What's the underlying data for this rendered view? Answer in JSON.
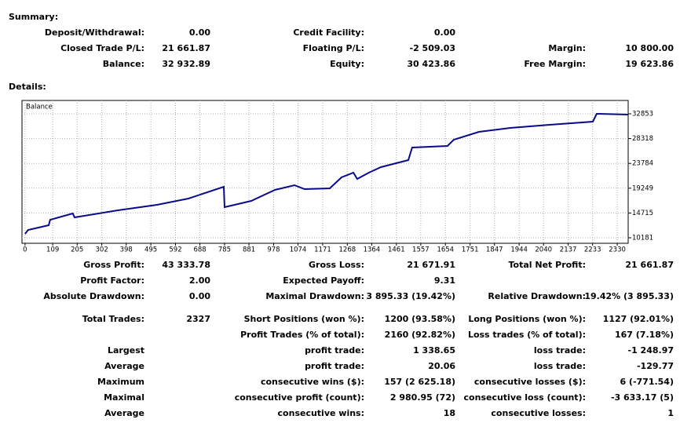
{
  "header": {
    "summary": "Summary:",
    "details": "Details:"
  },
  "summary": {
    "rows": [
      [
        "Deposit/Withdrawal:",
        "0.00",
        "Credit Facility:",
        "0.00",
        null,
        null
      ],
      [
        "Closed Trade P/L:",
        "21 661.87",
        "Floating P/L:",
        "-2 509.03",
        "Margin:",
        "10 800.00"
      ],
      [
        "Balance:",
        "32 932.89",
        "Equity:",
        "30 423.86",
        "Free Margin:",
        "19 623.86"
      ]
    ]
  },
  "chart_data": {
    "type": "line",
    "title": "Balance",
    "color": "#0b0b8a",
    "grid": true,
    "x": [
      0,
      12,
      93,
      99,
      188,
      195,
      365,
      519,
      643,
      782,
      785,
      890,
      983,
      1060,
      1100,
      1199,
      1245,
      1292,
      1307,
      1353,
      1400,
      1508,
      1523,
      1662,
      1687,
      1786,
      1909,
      2064,
      2234,
      2249,
      2373
    ],
    "values": [
      10898,
      11615,
      12477,
      13481,
      14629,
      13911,
      15203,
      16207,
      17355,
      19507,
      15777,
      16924,
      18933,
      19794,
      19076,
      19220,
      21228,
      22089,
      20942,
      22089,
      23093,
      24384,
      26680,
      26967,
      28115,
      29549,
      30267,
      30841,
      31415,
      32853,
      32709
    ],
    "xlim": [
      -12,
      2373
    ],
    "ylim": [
      9177,
      35293
    ],
    "xticks": [
      0,
      109,
      205,
      302,
      398,
      495,
      592,
      688,
      785,
      881,
      978,
      1074,
      1171,
      1268,
      1364,
      1461,
      1557,
      1654,
      1751,
      1847,
      1944,
      2040,
      2137,
      2233,
      2330
    ],
    "yticks": [
      10181,
      14715,
      19249,
      23784,
      28318,
      32853
    ]
  },
  "details": {
    "rows": [
      [
        "Gross Profit:",
        "43 333.78",
        "Gross Loss:",
        "21 671.91",
        "Total Net Profit:",
        "21 661.87"
      ],
      [
        "Profit Factor:",
        "2.00",
        "Expected Payoff:",
        "9.31",
        null,
        null
      ],
      [
        "Absolute Drawdown:",
        "0.00",
        "Maximal Drawdown:",
        "3 895.33 (19.42%)",
        "Relative Drawdown:",
        "19.42% (3 895.33)"
      ],
      [
        "Total Trades:",
        "2327",
        "Short Positions (won %):",
        "1200 (93.58%)",
        "Long Positions (won %):",
        "1127 (92.01%)"
      ],
      [
        null,
        null,
        "Profit Trades (% of total):",
        "2160 (92.82%)",
        "Loss trades (% of total):",
        "167 (7.18%)"
      ],
      [
        "Largest",
        null,
        "profit trade:",
        "1 338.65",
        "loss trade:",
        "-1 248.97"
      ],
      [
        "Average",
        null,
        "profit trade:",
        "20.06",
        "loss trade:",
        "-129.77"
      ],
      [
        "Maximum",
        null,
        "consecutive wins ($):",
        "157 (2 625.18)",
        "consecutive losses ($):",
        "6 (-771.54)"
      ],
      [
        "Maximal",
        null,
        "consecutive profit (count):",
        "2 980.95 (72)",
        "consecutive loss (count):",
        "-3 633.17 (5)"
      ],
      [
        "Average",
        null,
        "consecutive wins:",
        "18",
        "consecutive losses:",
        "1"
      ]
    ]
  }
}
